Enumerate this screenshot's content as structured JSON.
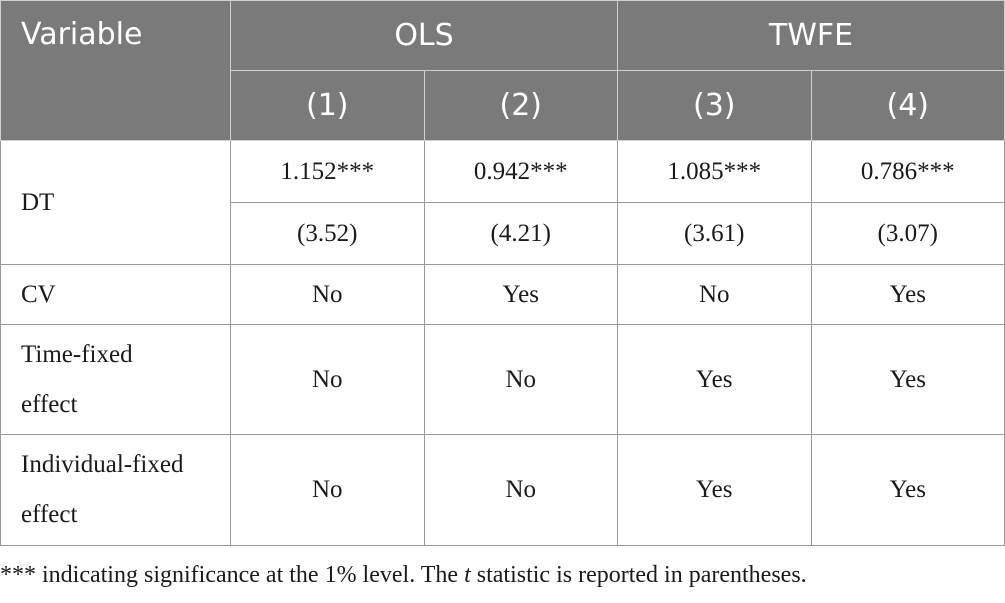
{
  "header": {
    "variable_label": "Variable",
    "groups": [
      "OLS",
      "TWFE"
    ],
    "columns": [
      "(1)",
      "(2)",
      "(3)",
      "(4)"
    ]
  },
  "rows": {
    "dt": {
      "label": "DT",
      "coefficients": [
        "1.152***",
        "0.942***",
        "1.085***",
        "0.786***"
      ],
      "t_stats": [
        "(3.52)",
        "(4.21)",
        "(3.61)",
        "(3.07)"
      ]
    },
    "cv": {
      "label": "CV",
      "values": [
        "No",
        "Yes",
        "No",
        "Yes"
      ]
    },
    "time_fixed": {
      "label_line1": "Time-fixed",
      "label_line2": "effect",
      "values": [
        "No",
        "No",
        "Yes",
        "Yes"
      ]
    },
    "individual_fixed": {
      "label_line1": "Individual-fixed",
      "label_line2": "effect",
      "values": [
        "No",
        "No",
        "Yes",
        "Yes"
      ]
    }
  },
  "note": {
    "part1": "*** indicating significance at the 1% level. The ",
    "italic": "t",
    "part2": " statistic is reported in parentheses."
  }
}
